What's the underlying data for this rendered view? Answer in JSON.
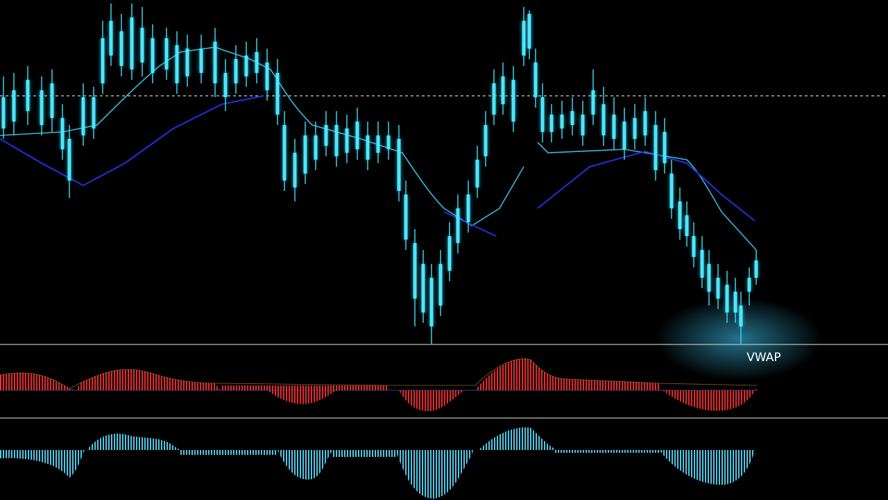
{
  "label": "VWAP"
}
